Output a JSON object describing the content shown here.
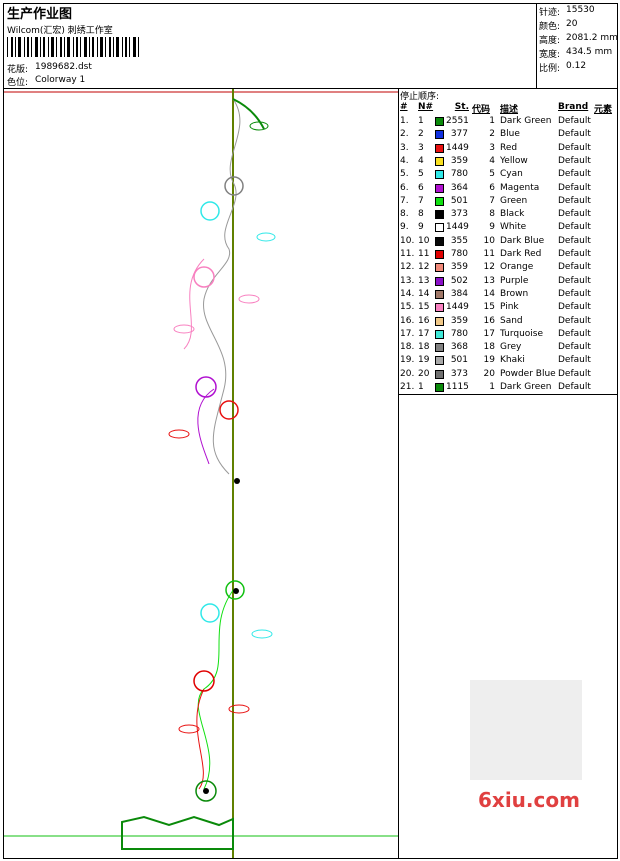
{
  "header": {
    "title": "生产作业图",
    "studio": "Wilcom(汇宏) 刺绣工作室",
    "design_label": "花版:",
    "design": "1989682.dst",
    "colorway_label": "色位:",
    "colorway": "Colorway 1"
  },
  "info": [
    {
      "label": "针迹:",
      "value": "15530"
    },
    {
      "label": "颜色:",
      "value": "20"
    },
    {
      "label": "高度:",
      "value": "2081.2 mm"
    },
    {
      "label": "宽度:",
      "value": "434.5 mm"
    },
    {
      "label": "比例:",
      "value": "0.12"
    }
  ],
  "table": {
    "title": "停止顺序:",
    "columns": [
      "#",
      "N#",
      "St.",
      "代码",
      "描述",
      "Brand",
      "元素"
    ],
    "rows": [
      {
        "seq": "1.",
        "n": "1",
        "color": "#0a8a0a",
        "st": "2551",
        "code": "1",
        "desc": "Dark Green",
        "brand": "Default"
      },
      {
        "seq": "2.",
        "n": "2",
        "color": "#1030e0",
        "st": "377",
        "code": "2",
        "desc": "Blue",
        "brand": "Default"
      },
      {
        "seq": "3.",
        "n": "3",
        "color": "#e81010",
        "st": "1449",
        "code": "3",
        "desc": "Red",
        "brand": "Default"
      },
      {
        "seq": "4.",
        "n": "4",
        "color": "#f8e020",
        "st": "359",
        "code": "4",
        "desc": "Yellow",
        "brand": "Default"
      },
      {
        "seq": "5.",
        "n": "5",
        "color": "#30e8e8",
        "st": "780",
        "code": "5",
        "desc": "Cyan",
        "brand": "Default"
      },
      {
        "seq": "6.",
        "n": "6",
        "color": "#b010d0",
        "st": "364",
        "code": "6",
        "desc": "Magenta",
        "brand": "Default"
      },
      {
        "seq": "7.",
        "n": "7",
        "color": "#10e010",
        "st": "501",
        "code": "7",
        "desc": "Green",
        "brand": "Default"
      },
      {
        "seq": "8.",
        "n": "8",
        "color": "#000000",
        "st": "373",
        "code": "8",
        "desc": "Black",
        "brand": "Default"
      },
      {
        "seq": "9.",
        "n": "9",
        "color": "#ffffff",
        "st": "1449",
        "code": "9",
        "desc": "White",
        "brand": "Default"
      },
      {
        "seq": "10.",
        "n": "10",
        "color": "#080808",
        "st": "355",
        "code": "10",
        "desc": "Dark Blue",
        "brand": "Default"
      },
      {
        "seq": "11.",
        "n": "11",
        "color": "#e00000",
        "st": "780",
        "code": "11",
        "desc": "Dark Red",
        "brand": "Default"
      },
      {
        "seq": "12.",
        "n": "12",
        "color": "#f08878",
        "st": "359",
        "code": "12",
        "desc": "Orange",
        "brand": "Default"
      },
      {
        "seq": "13.",
        "n": "13",
        "color": "#8a10c8",
        "st": "502",
        "code": "13",
        "desc": "Purple",
        "brand": "Default"
      },
      {
        "seq": "14.",
        "n": "14",
        "color": "#a07868",
        "st": "384",
        "code": "14",
        "desc": "Brown",
        "brand": "Default"
      },
      {
        "seq": "15.",
        "n": "15",
        "color": "#f880c0",
        "st": "1449",
        "code": "15",
        "desc": "Pink",
        "brand": "Default"
      },
      {
        "seq": "16.",
        "n": "16",
        "color": "#f0c888",
        "st": "359",
        "code": "16",
        "desc": "Sand",
        "brand": "Default"
      },
      {
        "seq": "17.",
        "n": "17",
        "color": "#40e8d8",
        "st": "780",
        "code": "17",
        "desc": "Turquoise",
        "brand": "Default"
      },
      {
        "seq": "18.",
        "n": "18",
        "color": "#808080",
        "st": "368",
        "code": "18",
        "desc": "Grey",
        "brand": "Default"
      },
      {
        "seq": "19.",
        "n": "19",
        "color": "#a8a8a8",
        "st": "501",
        "code": "19",
        "desc": "Khaki",
        "brand": "Default"
      },
      {
        "seq": "20.",
        "n": "20",
        "color": "#707070",
        "st": "373",
        "code": "20",
        "desc": "Powder Blue",
        "brand": "Default"
      },
      {
        "seq": "21.",
        "n": "1",
        "color": "#0a8a0a",
        "st": "1115",
        "code": "1",
        "desc": "Dark Green",
        "brand": "Default"
      }
    ]
  },
  "watermark": "6xiu.com"
}
